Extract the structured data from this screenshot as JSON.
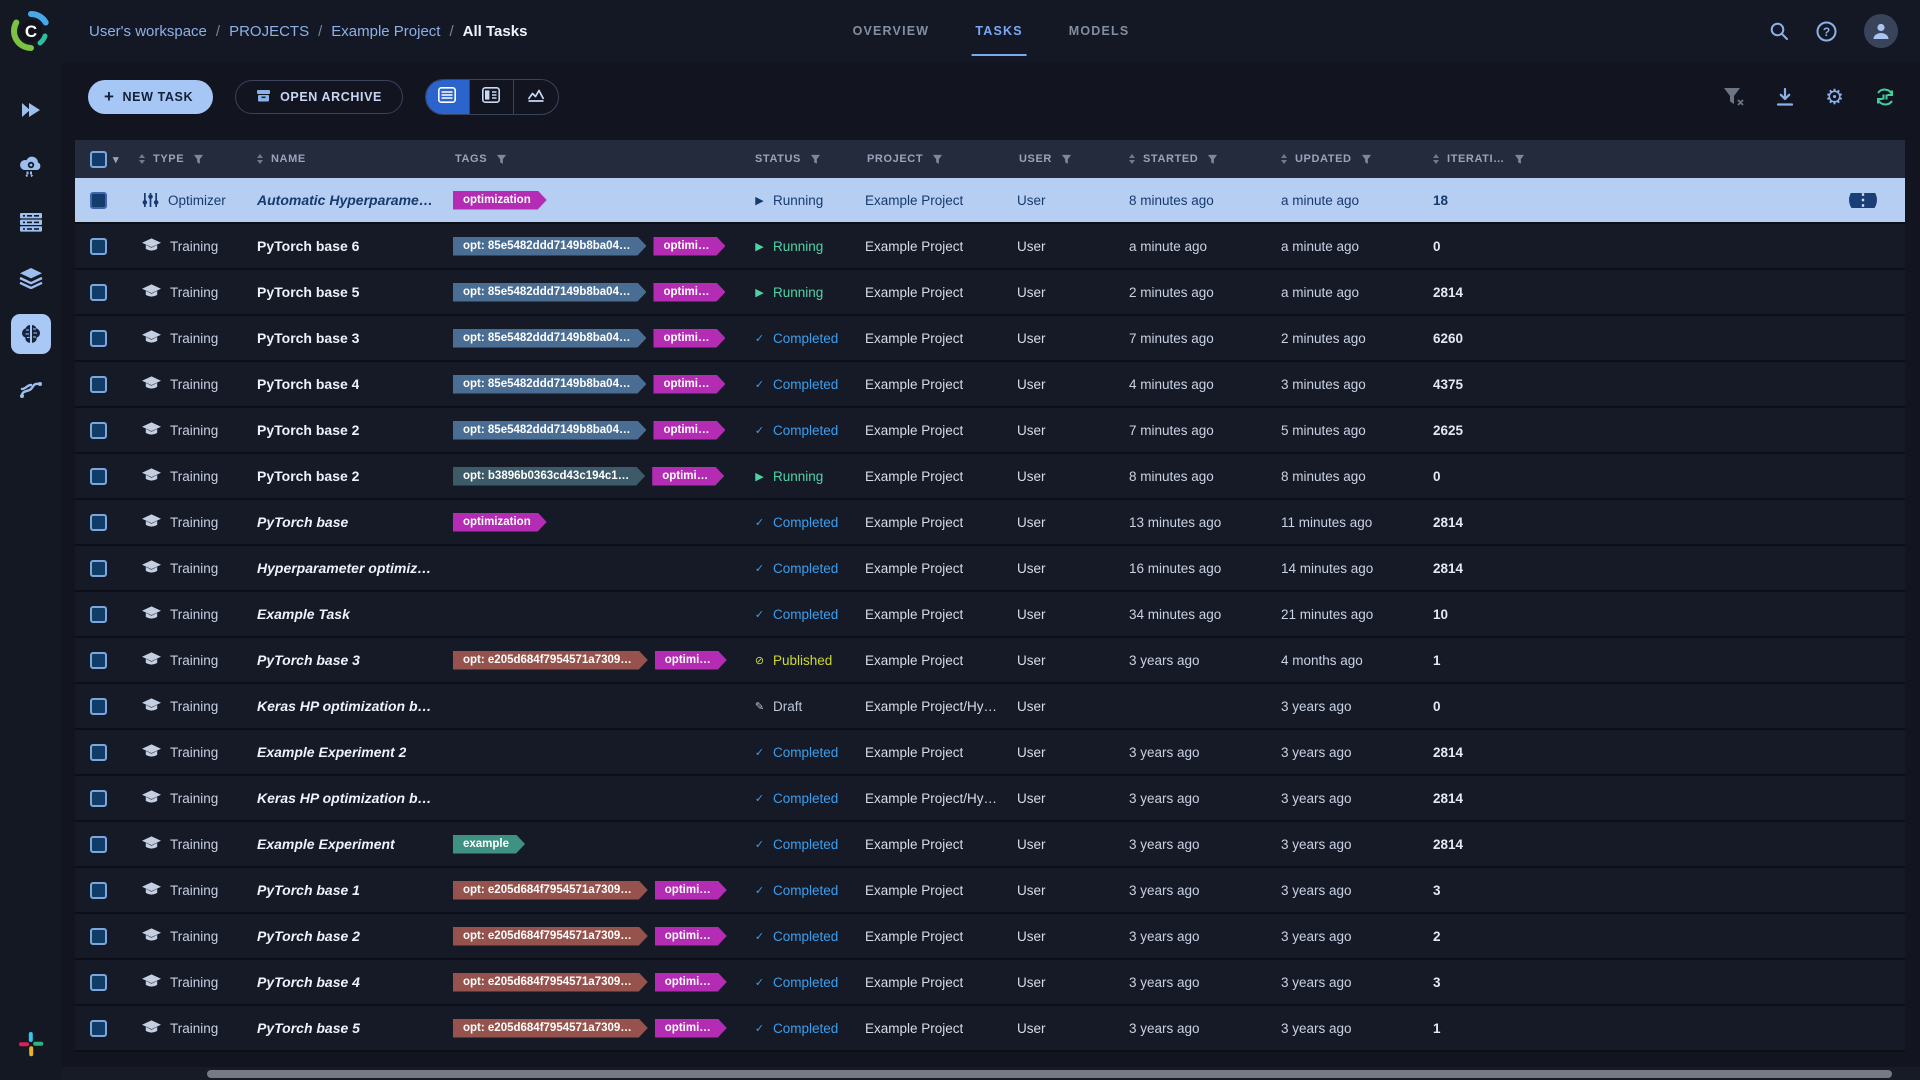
{
  "topbar": {
    "breadcrumbs": [
      "User's workspace",
      "PROJECTS",
      "Example Project",
      "All Tasks"
    ],
    "separator": "/",
    "tabs": [
      {
        "label": "OVERVIEW",
        "active": false
      },
      {
        "label": "TASKS",
        "active": true
      },
      {
        "label": "MODELS",
        "active": false
      }
    ],
    "icons": [
      "search",
      "help",
      "avatar"
    ]
  },
  "toolbar": {
    "new_task_label": "NEW TASK",
    "open_archive_label": "OPEN ARCHIVE",
    "views": [
      {
        "icon": "table-view",
        "active": true
      },
      {
        "icon": "detail-view",
        "active": false
      },
      {
        "icon": "compare-view",
        "active": false
      }
    ],
    "right_icons": [
      "clear-filters",
      "download",
      "settings",
      "auto-refresh"
    ]
  },
  "sidebar": {
    "items": [
      {
        "icon": "fast-forward",
        "active": false
      },
      {
        "icon": "cloud-gear",
        "active": false
      },
      {
        "icon": "server-rack",
        "active": false
      },
      {
        "icon": "layers",
        "active": false
      },
      {
        "icon": "brain",
        "active": true
      },
      {
        "icon": "pipeline",
        "active": false
      }
    ],
    "footer_icon": "slack",
    "logo": "clearml"
  },
  "palette": {
    "magenta": "#b42cb4",
    "slate": "#4a6d94",
    "teal_slate": "#3c5a68",
    "red": "#96534e",
    "teal": "#3f9181",
    "status_running": "#4ed3a4",
    "status_completed": "#3a9ff0",
    "status_published": "#ccd933",
    "status_draft": "#bdc6d8",
    "accent": "#a6c6f5",
    "selected_row_bg": "#b7cef3"
  },
  "table": {
    "headers": [
      {
        "key": "check",
        "label": "",
        "sort": false,
        "filter": false,
        "checkbox": true
      },
      {
        "key": "type",
        "label": "TYPE",
        "sort": true,
        "filter": true
      },
      {
        "key": "name",
        "label": "NAME",
        "sort": true,
        "filter": false
      },
      {
        "key": "tags",
        "label": "TAGS",
        "sort": false,
        "filter": true
      },
      {
        "key": "status",
        "label": "STATUS",
        "sort": false,
        "filter": true
      },
      {
        "key": "project",
        "label": "PROJECT",
        "sort": false,
        "filter": true
      },
      {
        "key": "user",
        "label": "USER",
        "sort": false,
        "filter": true
      },
      {
        "key": "started",
        "label": "STARTED",
        "sort": true,
        "filter": true
      },
      {
        "key": "updated",
        "label": "UPDATED",
        "sort": true,
        "filter": true
      },
      {
        "key": "iterations",
        "label": "ITERATI…",
        "sort": true,
        "filter": true
      }
    ],
    "rows": [
      {
        "type": "Optimizer",
        "name": "Automatic Hyperparamete…",
        "italic": true,
        "tags": [
          {
            "label": "optimization",
            "color": "magenta"
          }
        ],
        "status": "Running",
        "status_kind": "running",
        "project": "Example Project",
        "user": "User",
        "started": "8 minutes ago",
        "updated": "a minute ago",
        "iterations": "18",
        "selected": true
      },
      {
        "type": "Training",
        "name": "PyTorch base 6",
        "italic": false,
        "tags": [
          {
            "label": "opt: 85e5482ddd7149b8ba04…",
            "color": "slate"
          },
          {
            "label": "optimi…",
            "color": "magenta"
          }
        ],
        "status": "Running",
        "status_kind": "running",
        "project": "Example Project",
        "user": "User",
        "started": "a minute ago",
        "updated": "a minute ago",
        "iterations": "0",
        "selected": false
      },
      {
        "type": "Training",
        "name": "PyTorch base 5",
        "italic": false,
        "tags": [
          {
            "label": "opt: 85e5482ddd7149b8ba04…",
            "color": "slate"
          },
          {
            "label": "optimi…",
            "color": "magenta"
          }
        ],
        "status": "Running",
        "status_kind": "running",
        "project": "Example Project",
        "user": "User",
        "started": "2 minutes ago",
        "updated": "a minute ago",
        "iterations": "2814",
        "selected": false
      },
      {
        "type": "Training",
        "name": "PyTorch base 3",
        "italic": false,
        "tags": [
          {
            "label": "opt: 85e5482ddd7149b8ba04…",
            "color": "slate"
          },
          {
            "label": "optimi…",
            "color": "magenta"
          }
        ],
        "status": "Completed",
        "status_kind": "completed",
        "project": "Example Project",
        "user": "User",
        "started": "7 minutes ago",
        "updated": "2 minutes ago",
        "iterations": "6260",
        "selected": false
      },
      {
        "type": "Training",
        "name": "PyTorch base 4",
        "italic": false,
        "tags": [
          {
            "label": "opt: 85e5482ddd7149b8ba04…",
            "color": "slate"
          },
          {
            "label": "optimi…",
            "color": "magenta"
          }
        ],
        "status": "Completed",
        "status_kind": "completed",
        "project": "Example Project",
        "user": "User",
        "started": "4 minutes ago",
        "updated": "3 minutes ago",
        "iterations": "4375",
        "selected": false
      },
      {
        "type": "Training",
        "name": "PyTorch base 2",
        "italic": false,
        "tags": [
          {
            "label": "opt: 85e5482ddd7149b8ba04…",
            "color": "slate"
          },
          {
            "label": "optimi…",
            "color": "magenta"
          }
        ],
        "status": "Completed",
        "status_kind": "completed",
        "project": "Example Project",
        "user": "User",
        "started": "7 minutes ago",
        "updated": "5 minutes ago",
        "iterations": "2625",
        "selected": false
      },
      {
        "type": "Training",
        "name": "PyTorch base 2",
        "italic": false,
        "tags": [
          {
            "label": "opt: b3896b0363cd43c194c1…",
            "color": "teal_slate"
          },
          {
            "label": "optimi…",
            "color": "magenta"
          }
        ],
        "status": "Running",
        "status_kind": "running",
        "project": "Example Project",
        "user": "User",
        "started": "8 minutes ago",
        "updated": "8 minutes ago",
        "iterations": "0",
        "selected": false
      },
      {
        "type": "Training",
        "name": "PyTorch base",
        "italic": true,
        "tags": [
          {
            "label": "optimization",
            "color": "magenta"
          }
        ],
        "status": "Completed",
        "status_kind": "completed",
        "project": "Example Project",
        "user": "User",
        "started": "13 minutes ago",
        "updated": "11 minutes ago",
        "iterations": "2814",
        "selected": false
      },
      {
        "type": "Training",
        "name": "Hyperparameter optimizati…",
        "italic": true,
        "tags": [],
        "status": "Completed",
        "status_kind": "completed",
        "project": "Example Project",
        "user": "User",
        "started": "16 minutes ago",
        "updated": "14 minutes ago",
        "iterations": "2814",
        "selected": false
      },
      {
        "type": "Training",
        "name": "Example Task",
        "italic": true,
        "tags": [],
        "status": "Completed",
        "status_kind": "completed",
        "project": "Example Project",
        "user": "User",
        "started": "34 minutes ago",
        "updated": "21 minutes ago",
        "iterations": "10",
        "selected": false
      },
      {
        "type": "Training",
        "name": "PyTorch base 3",
        "italic": true,
        "tags": [
          {
            "label": "opt: e205d684f7954571a7309…",
            "color": "red"
          },
          {
            "label": "optimi…",
            "color": "magenta"
          }
        ],
        "status": "Published",
        "status_kind": "published",
        "project": "Example Project",
        "user": "User",
        "started": "3 years ago",
        "updated": "4 months ago",
        "iterations": "1",
        "selected": false
      },
      {
        "type": "Training",
        "name": "Keras HP optimization base",
        "italic": true,
        "tags": [],
        "status": "Draft",
        "status_kind": "draft",
        "project": "Example Project/Hy…",
        "user": "User",
        "started": "",
        "updated": "3 years ago",
        "iterations": "0",
        "selected": false
      },
      {
        "type": "Training",
        "name": "Example Experiment 2",
        "italic": true,
        "tags": [],
        "status": "Completed",
        "status_kind": "completed",
        "project": "Example Project",
        "user": "User",
        "started": "3 years ago",
        "updated": "3 years ago",
        "iterations": "2814",
        "selected": false
      },
      {
        "type": "Training",
        "name": "Keras HP optimization base",
        "italic": true,
        "tags": [],
        "status": "Completed",
        "status_kind": "completed",
        "project": "Example Project/Hy…",
        "user": "User",
        "started": "3 years ago",
        "updated": "3 years ago",
        "iterations": "2814",
        "selected": false
      },
      {
        "type": "Training",
        "name": "Example Experiment",
        "italic": true,
        "tags": [
          {
            "label": "example",
            "color": "teal"
          }
        ],
        "status": "Completed",
        "status_kind": "completed",
        "project": "Example Project",
        "user": "User",
        "started": "3 years ago",
        "updated": "3 years ago",
        "iterations": "2814",
        "selected": false
      },
      {
        "type": "Training",
        "name": "PyTorch base 1",
        "italic": true,
        "tags": [
          {
            "label": "opt: e205d684f7954571a7309…",
            "color": "red"
          },
          {
            "label": "optimi…",
            "color": "magenta"
          }
        ],
        "status": "Completed",
        "status_kind": "completed",
        "project": "Example Project",
        "user": "User",
        "started": "3 years ago",
        "updated": "3 years ago",
        "iterations": "3",
        "selected": false
      },
      {
        "type": "Training",
        "name": "PyTorch base 2",
        "italic": true,
        "tags": [
          {
            "label": "opt: e205d684f7954571a7309…",
            "color": "red"
          },
          {
            "label": "optimi…",
            "color": "magenta"
          }
        ],
        "status": "Completed",
        "status_kind": "completed",
        "project": "Example Project",
        "user": "User",
        "started": "3 years ago",
        "updated": "3 years ago",
        "iterations": "2",
        "selected": false
      },
      {
        "type": "Training",
        "name": "PyTorch base 4",
        "italic": true,
        "tags": [
          {
            "label": "opt: e205d684f7954571a7309…",
            "color": "red"
          },
          {
            "label": "optimi…",
            "color": "magenta"
          }
        ],
        "status": "Completed",
        "status_kind": "completed",
        "project": "Example Project",
        "user": "User",
        "started": "3 years ago",
        "updated": "3 years ago",
        "iterations": "3",
        "selected": false
      },
      {
        "type": "Training",
        "name": "PyTorch base 5",
        "italic": true,
        "tags": [
          {
            "label": "opt: e205d684f7954571a7309…",
            "color": "red"
          },
          {
            "label": "optimi…",
            "color": "magenta"
          }
        ],
        "status": "Completed",
        "status_kind": "completed",
        "project": "Example Project",
        "user": "User",
        "started": "3 years ago",
        "updated": "3 years ago",
        "iterations": "1",
        "selected": false
      }
    ]
  }
}
